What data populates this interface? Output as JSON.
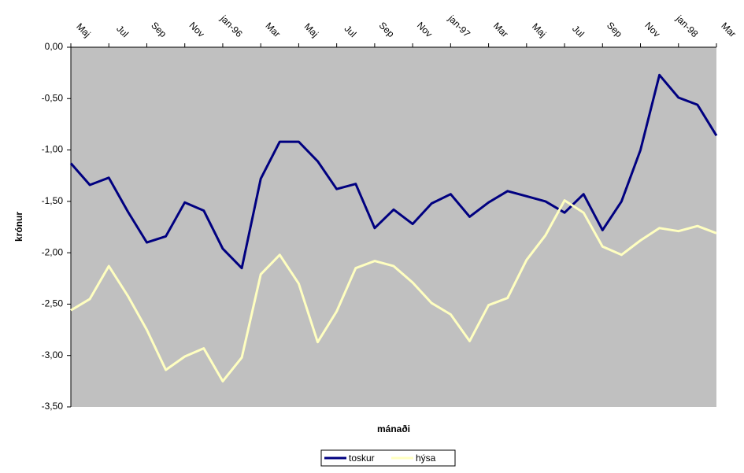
{
  "chart_data": {
    "type": "line",
    "y_label": "krónur",
    "x_label": "mánaði",
    "categories": [
      "Maj",
      null,
      "Jul",
      null,
      "Sep",
      null,
      "Nov",
      null,
      "jan-96",
      null,
      "Mar",
      null,
      "Maj",
      null,
      "Jul",
      null,
      "Sep",
      null,
      "Nov",
      null,
      "jan-97",
      null,
      "Mar",
      null,
      "Maj",
      null,
      "Jul",
      null,
      "Sep",
      null,
      "Nov",
      null,
      "jan-98",
      null,
      "Mar"
    ],
    "series": [
      {
        "name": "toskur",
        "color": "#000080",
        "values": [
          -1.13,
          -1.34,
          -1.27,
          -1.6,
          -1.9,
          -1.84,
          -1.51,
          -1.59,
          -1.96,
          -2.15,
          -1.28,
          -0.92,
          -0.92,
          -1.11,
          -1.38,
          -1.33,
          -1.76,
          -1.58,
          -1.72,
          -1.52,
          -1.43,
          -1.65,
          -1.51,
          -1.4,
          -1.45,
          -1.5,
          -1.61,
          -1.43,
          -1.78,
          -1.5,
          -1.0,
          -0.27,
          -0.49,
          -0.56,
          -0.86
        ]
      },
      {
        "name": "hýsa",
        "color": "#ffffc0",
        "values": [
          -2.56,
          -2.45,
          -2.13,
          -2.42,
          -2.75,
          -3.14,
          -3.01,
          -2.93,
          -3.25,
          -3.02,
          -2.21,
          -2.02,
          -2.3,
          -2.87,
          -2.57,
          -2.15,
          -2.08,
          -2.13,
          -2.29,
          -2.49,
          -2.6,
          -2.86,
          -2.51,
          -2.44,
          -2.07,
          -1.83,
          -1.49,
          -1.61,
          -1.94,
          -2.02,
          -1.88,
          -1.76,
          -1.79,
          -1.74,
          -1.81
        ]
      }
    ],
    "ylim": [
      -3.5,
      0
    ],
    "yticks": [
      {
        "value": 0,
        "label": "0,00"
      },
      {
        "value": -0.5,
        "label": "-0,50"
      },
      {
        "value": -1,
        "label": "-1,00"
      },
      {
        "value": -1.5,
        "label": "-1,50"
      },
      {
        "value": -2,
        "label": "-2,00"
      },
      {
        "value": -2.5,
        "label": "-2,50"
      },
      {
        "value": -3,
        "label": "-3,00"
      },
      {
        "value": -3.5,
        "label": "-3,50"
      }
    ],
    "grid": false,
    "plot_background": "#c0c0c0",
    "legend": "bottom"
  }
}
